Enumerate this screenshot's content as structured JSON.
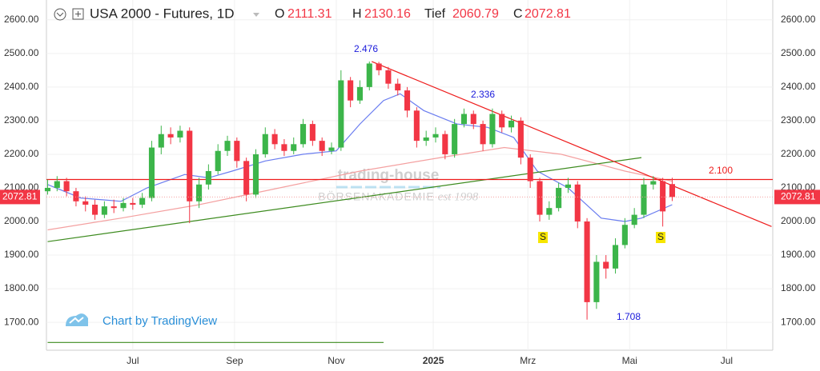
{
  "header": {
    "symbol": "USA 2000 - Futures, 1D",
    "o": "O",
    "h": "H",
    "l": "Tief",
    "c": "C"
  },
  "chart_data": {
    "type": "candlestick",
    "x": [
      0,
      4,
      8,
      12,
      16,
      20,
      24,
      28,
      32,
      36,
      40,
      44,
      48,
      52,
      56,
      60,
      64,
      68,
      72,
      76,
      80,
      84,
      88,
      92,
      96,
      100,
      104,
      108,
      112,
      116,
      120,
      124,
      128,
      132,
      136,
      140,
      144,
      148,
      152,
      156,
      160,
      164,
      168,
      172,
      176,
      180,
      184,
      188,
      192,
      196,
      200,
      204,
      208,
      212,
      216,
      220,
      224,
      228,
      232,
      236,
      240,
      244,
      248,
      252,
      256,
      260,
      264
    ],
    "open": [
      2090,
      2100,
      2120,
      2090,
      2060,
      2050,
      2020,
      2045,
      2040,
      2055,
      2050,
      2070,
      2220,
      2260,
      2250,
      2270,
      2060,
      2110,
      2150,
      2210,
      2240,
      2180,
      2080,
      2200,
      2260,
      2230,
      2210,
      2230,
      2290,
      2240,
      2210,
      2220,
      2420,
      2360,
      2400,
      2470,
      2450,
      2410,
      2390,
      2330,
      2240,
      2250,
      2260,
      2200,
      2290,
      2320,
      2290,
      2230,
      2320,
      2280,
      2300,
      2190,
      2120,
      2020,
      2040,
      2100,
      2110,
      2000,
      1760,
      1880,
      1860,
      1930,
      1990,
      2020,
      2110,
      2120,
      2111.31
    ],
    "high": [
      2125,
      2135,
      2130,
      2100,
      2075,
      2065,
      2060,
      2065,
      2070,
      2070,
      2085,
      2240,
      2285,
      2280,
      2285,
      2280,
      2130,
      2170,
      2230,
      2255,
      2250,
      2190,
      2215,
      2280,
      2275,
      2245,
      2250,
      2305,
      2300,
      2250,
      2235,
      2450,
      2430,
      2420,
      2476,
      2475,
      2460,
      2425,
      2400,
      2340,
      2270,
      2280,
      2270,
      2305,
      2336,
      2330,
      2300,
      2336,
      2330,
      2315,
      2310,
      2200,
      2130,
      2060,
      2115,
      2130,
      2120,
      2010,
      1900,
      1900,
      1950,
      2010,
      2040,
      2130,
      2135,
      2130,
      2130.16
    ],
    "low": [
      2080,
      2090,
      2075,
      2045,
      2030,
      2005,
      2010,
      2025,
      2030,
      2035,
      2040,
      2060,
      2200,
      2230,
      2235,
      1995,
      2040,
      2095,
      2140,
      2195,
      2160,
      2060,
      2070,
      2190,
      2215,
      2195,
      2200,
      2220,
      2225,
      2195,
      2200,
      2210,
      2340,
      2350,
      2390,
      2435,
      2395,
      2375,
      2310,
      2220,
      2225,
      2235,
      2185,
      2190,
      2280,
      2275,
      2210,
      2220,
      2265,
      2265,
      2170,
      2100,
      2000,
      2005,
      2030,
      2085,
      1980,
      1708,
      1740,
      1830,
      1845,
      1920,
      1980,
      2010,
      2095,
      1985,
      2060.79
    ],
    "close": [
      2100,
      2120,
      2090,
      2060,
      2050,
      2020,
      2045,
      2040,
      2055,
      2050,
      2070,
      2220,
      2260,
      2250,
      2270,
      2060,
      2110,
      2150,
      2210,
      2240,
      2180,
      2080,
      2200,
      2260,
      2230,
      2210,
      2230,
      2290,
      2240,
      2210,
      2220,
      2420,
      2360,
      2400,
      2470,
      2450,
      2410,
      2390,
      2330,
      2240,
      2250,
      2260,
      2200,
      2290,
      2320,
      2290,
      2230,
      2320,
      2280,
      2300,
      2190,
      2120,
      2020,
      2040,
      2100,
      2110,
      2000,
      1760,
      1880,
      1860,
      1930,
      1990,
      2020,
      2110,
      2120,
      2030,
      2072.81
    ],
    "up_color": "#3cb54a",
    "down_color": "#f23645",
    "xlim": [
      -0.5,
      306.5
    ],
    "xticks": [
      {
        "value": 36,
        "label": "Jul"
      },
      {
        "value": 79,
        "label": "Sep"
      },
      {
        "value": 122,
        "label": "Nov"
      },
      {
        "value": 163,
        "label": "2025"
      },
      {
        "value": 203,
        "label": "Mrz"
      },
      {
        "value": 246,
        "label": "Mai"
      },
      {
        "value": 287,
        "label": "Jul"
      }
    ],
    "ylim": [
      1617,
      2659
    ],
    "yticks": [
      {
        "value": 1700,
        "label": "1700.00"
      },
      {
        "value": 1800,
        "label": "1800.00"
      },
      {
        "value": 1900,
        "label": "1900.00"
      },
      {
        "value": 2000,
        "label": "2000.00"
      },
      {
        "value": 2100,
        "label": "2100.00"
      },
      {
        "value": 2200,
        "label": "2200.00"
      },
      {
        "value": 2300,
        "label": "2300.00"
      },
      {
        "value": 2400,
        "label": "2400.00"
      },
      {
        "value": 2500,
        "label": "2500.00"
      },
      {
        "value": 2600,
        "label": "2600.00"
      }
    ],
    "grid": true,
    "lines": [
      {
        "color": "#6a7df0",
        "x": [
          0,
          14,
          31,
          42,
          58,
          68,
          78,
          92,
          108,
          122,
          132,
          142,
          149,
          159,
          173,
          186,
          197,
          207,
          220,
          234,
          244,
          251,
          264
        ],
        "values": [
          2110,
          2070,
          2060,
          2100,
          2140,
          2130,
          2150,
          2180,
          2200,
          2210,
          2290,
          2360,
          2380,
          2330,
          2290,
          2280,
          2250,
          2150,
          2100,
          2010,
          2000,
          2010,
          2050
        ]
      },
      {
        "color": "#f4a0a0",
        "x": [
          0,
          31,
          64,
          98,
          132,
          166,
          193,
          217,
          244,
          264
        ],
        "values": [
          1975,
          2010,
          2050,
          2100,
          2150,
          2190,
          2220,
          2200,
          2150,
          2120
        ]
      },
      {
        "color": "#3d8b1f",
        "x": [
          0,
          251
        ],
        "values": [
          1940,
          2190
        ]
      },
      {
        "color": "#ee1c1c",
        "x": [
          137,
          306
        ],
        "values": [
          2476,
          1985
        ]
      },
      {
        "color": "#ee1c1c",
        "x": [
          -0.5,
          306.5
        ],
        "values": [
          2125,
          2125
        ]
      },
      {
        "color": "#3d8b1f",
        "x": [
          0,
          142
        ],
        "values": [
          1640,
          1640
        ]
      }
    ],
    "annotations": [
      "2.476",
      "2.336",
      "1.708",
      "2.100",
      "S",
      "S"
    ]
  },
  "watermark": {
    "brand": "trading-house",
    "sub": "BÖRSENAKADEMIE",
    "est": "est 1998"
  },
  "credit": "Chart by TradingView"
}
